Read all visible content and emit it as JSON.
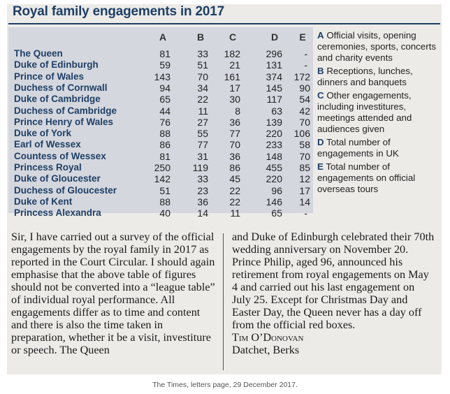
{
  "title": "Royal family engagements in 2017",
  "columns": [
    "A",
    "B",
    "C",
    "D",
    "E"
  ],
  "rows": [
    {
      "name": "The Queen",
      "values": [
        "81",
        "33",
        "182",
        "296",
        "-"
      ]
    },
    {
      "name": "Duke of Edinburgh",
      "values": [
        "59",
        "51",
        "21",
        "131",
        "-"
      ]
    },
    {
      "name": "Prince of Wales",
      "values": [
        "143",
        "70",
        "161",
        "374",
        "172"
      ]
    },
    {
      "name": "Duchess of Cornwall",
      "values": [
        "94",
        "34",
        "17",
        "145",
        "90"
      ]
    },
    {
      "name": "Duke of Cambridge",
      "values": [
        "65",
        "22",
        "30",
        "117",
        "54"
      ]
    },
    {
      "name": "Duchess of Cambridge",
      "values": [
        "44",
        "11",
        "8",
        "63",
        "42"
      ]
    },
    {
      "name": "Prince Henry of Wales",
      "values": [
        "76",
        "27",
        "36",
        "139",
        "70"
      ]
    },
    {
      "name": "Duke of York",
      "values": [
        "88",
        "55",
        "77",
        "220",
        "106"
      ]
    },
    {
      "name": "Earl of Wessex",
      "values": [
        "86",
        "77",
        "70",
        "233",
        "58"
      ]
    },
    {
      "name": "Countess of Wessex",
      "values": [
        "81",
        "31",
        "36",
        "148",
        "70"
      ]
    },
    {
      "name": "Princess Royal",
      "values": [
        "250",
        "119",
        "86",
        "455",
        "85"
      ]
    },
    {
      "name": "Duke of Gloucester",
      "values": [
        "142",
        "33",
        "45",
        "220",
        "12"
      ]
    },
    {
      "name": "Duchess of Gloucester",
      "values": [
        "51",
        "23",
        "22",
        "96",
        "17"
      ]
    },
    {
      "name": "Duke of Kent",
      "values": [
        "88",
        "36",
        "22",
        "146",
        "14"
      ]
    },
    {
      "name": "Princess Alexandra",
      "values": [
        "40",
        "14",
        "11",
        "65",
        "-"
      ]
    }
  ],
  "legend": [
    {
      "key": "A",
      "text": "Official visits, opening ceremonies, sports, concerts and charity events"
    },
    {
      "key": "B",
      "text": "Receptions, lunches, dinners and banquets"
    },
    {
      "key": "C",
      "text": "Other engagements, including investitures, meetings attended and audiences given"
    },
    {
      "key": "D",
      "text": "Total number of engagements in UK"
    },
    {
      "key": "E",
      "text": "Total number of engagements on official overseas tours"
    }
  ],
  "letter": {
    "col1": "Sir, I have carried out a survey of the official engagements by the royal family in 2017 as reported in the Court Circular. I should again emphasise that the above table of figures should not be converted into a “league table” of individual royal performance. All engagements differ as to time and content and there is also the time taken in preparation, whether it be a visit, investiture or speech. The Queen",
    "col2": "and Duke of Edinburgh celebrated their 70th wedding anniversary on November 20. Prince Philip, aged 96, announced his retirement from royal engagements on May 4 and carried out his last engagement on July 25. Except for Christmas Day and Easter Day, the Queen never has a day off from the official red boxes.",
    "signature": "Tim O’Donovan",
    "location": "Datchet, Berks"
  },
  "caption": "The Times, letters page, 29 December 2017."
}
